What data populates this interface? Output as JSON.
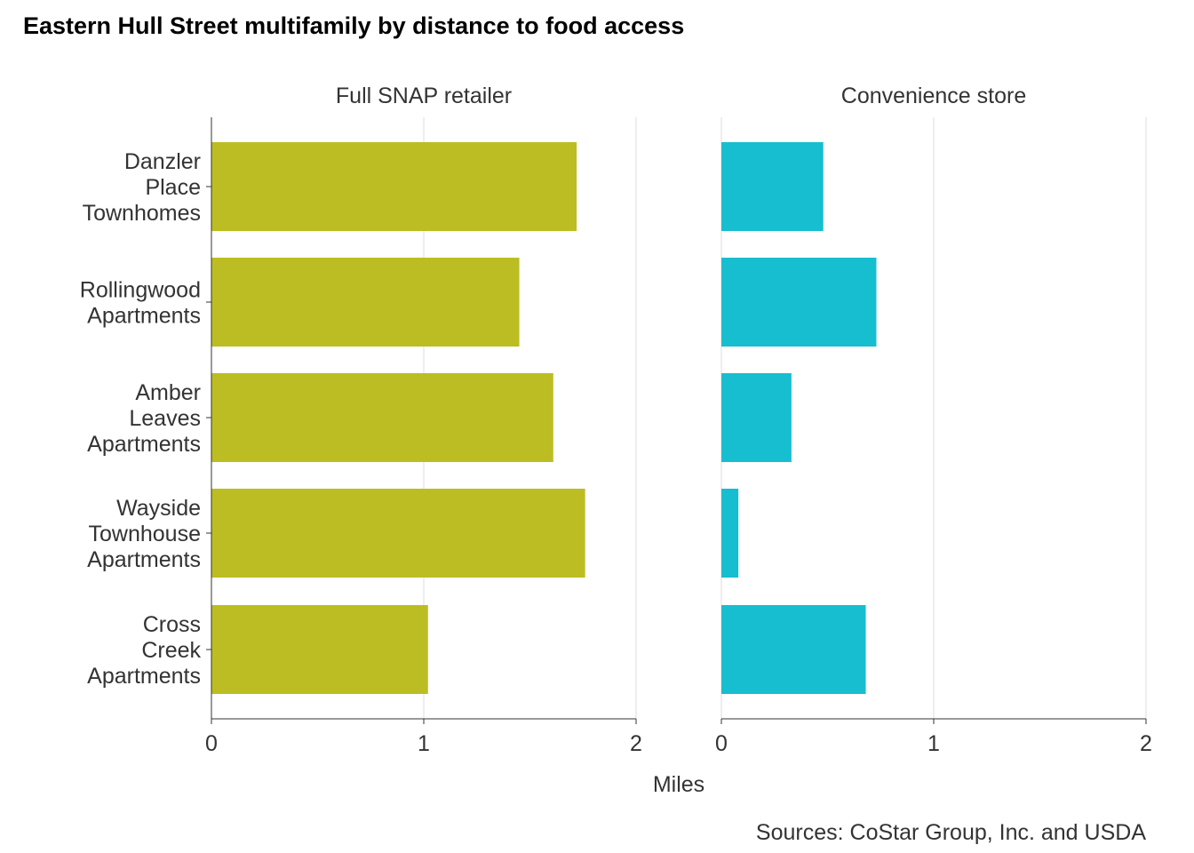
{
  "chart_data": {
    "type": "bar",
    "orientation": "horizontal",
    "title": "Eastern Hull Street multifamily by distance to food access",
    "xlabel": "Miles",
    "caption": "Sources: CoStar Group, Inc. and USDA",
    "xlim": [
      0,
      2
    ],
    "xticks": [
      "0",
      "1",
      "2"
    ],
    "grid": true,
    "categories": [
      [
        "Danzler",
        "Place",
        "Townhomes"
      ],
      [
        "Rollingwood",
        "Apartments"
      ],
      [
        "Amber",
        "Leaves",
        "Apartments"
      ],
      [
        "Wayside",
        "Townhouse",
        "Apartments"
      ],
      [
        "Cross",
        "Creek",
        "Apartments"
      ]
    ],
    "facets": [
      {
        "name": "Full SNAP retailer",
        "color": "#bcbd22",
        "values": [
          1.72,
          1.45,
          1.61,
          1.76,
          1.02
        ]
      },
      {
        "name": "Convenience store",
        "color": "#17becf",
        "values": [
          0.48,
          0.73,
          0.33,
          0.08,
          0.68
        ]
      }
    ]
  }
}
